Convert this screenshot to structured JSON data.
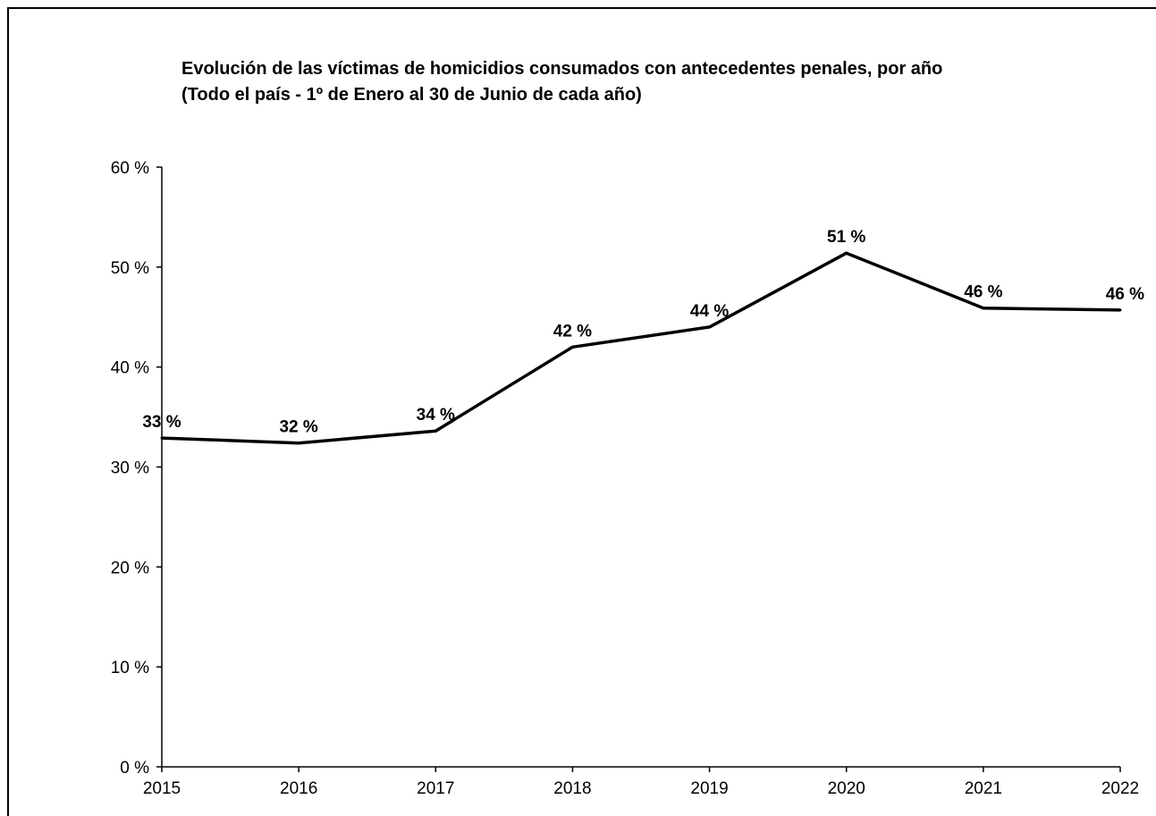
{
  "chart_data": {
    "type": "line",
    "title": [
      "Evolución de las víctimas de homicidios consumados con antecedentes penales, por año",
      "(Todo el país - 1º de Enero al 30 de Junio de cada año)"
    ],
    "categories": [
      "2015",
      "2016",
      "2017",
      "2018",
      "2019",
      "2020",
      "2021",
      "2022"
    ],
    "values": [
      32.9,
      32.4,
      33.6,
      42.0,
      44.0,
      51.4,
      45.9,
      45.7
    ],
    "data_labels": [
      "33 %",
      "32 %",
      "34 %",
      "42 %",
      "44 %",
      "51 %",
      "46 %",
      "46 %"
    ],
    "y_ticks": [
      {
        "value": 0,
        "label": "0 %"
      },
      {
        "value": 10,
        "label": "10 %"
      },
      {
        "value": 20,
        "label": "20 %"
      },
      {
        "value": 30,
        "label": "30 %"
      },
      {
        "value": 40,
        "label": "40 %"
      },
      {
        "value": 50,
        "label": "50 %"
      },
      {
        "value": 60,
        "label": "60 %"
      }
    ],
    "ylim": [
      0,
      60
    ],
    "xlabel": "",
    "ylabel": "",
    "grid": false,
    "legend": "none",
    "line_color": "#000000",
    "border_color": "#000000",
    "background_color": "#ffffff"
  }
}
